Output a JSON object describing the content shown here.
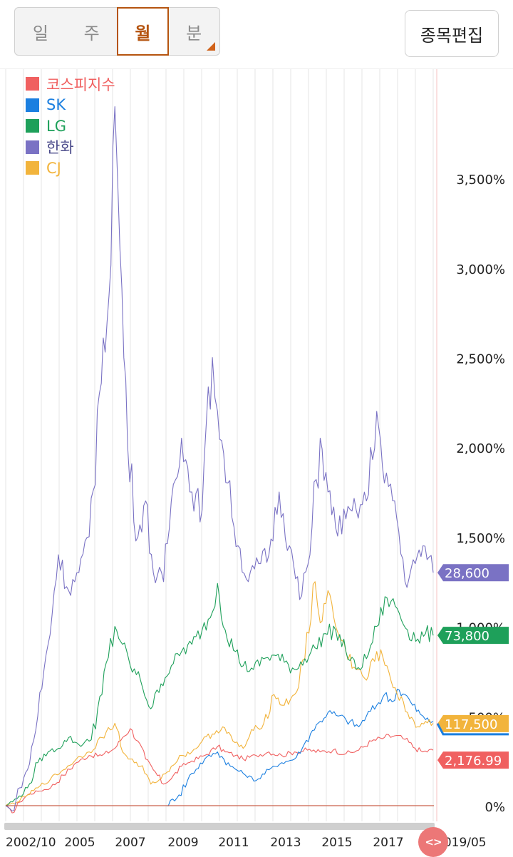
{
  "tabs": [
    {
      "label": "일"
    },
    {
      "label": "주"
    },
    {
      "label": "월"
    },
    {
      "label": "분"
    }
  ],
  "active_tab": "월",
  "edit_button": "종목편집",
  "scroll_knob": "<>",
  "chart_data": {
    "type": "line",
    "y_unit": "%",
    "yticks": [
      "0%",
      "500%",
      "1,000%",
      "1,500%",
      "2,000%",
      "2,500%",
      "3,000%",
      "3,500%"
    ],
    "ylim": [
      0,
      3950
    ],
    "xticks": [
      "2002/10",
      "2005",
      "2007",
      "2009",
      "2011",
      "2013",
      "2015",
      "2017",
      "2019/05"
    ],
    "x_range": [
      2002.75,
      2019.4
    ],
    "grid": true,
    "legend_position": "top-left",
    "series": [
      {
        "name": "코스피지수",
        "color": "#f06060",
        "last_value_label": "2,176.99",
        "points": [
          [
            2002.75,
            0
          ],
          [
            2003.0,
            -40
          ],
          [
            2003.3,
            20
          ],
          [
            2003.6,
            60
          ],
          [
            2004.0,
            80
          ],
          [
            2004.5,
            100
          ],
          [
            2005.0,
            170
          ],
          [
            2005.5,
            240
          ],
          [
            2006.0,
            280
          ],
          [
            2006.5,
            280
          ],
          [
            2007.0,
            320
          ],
          [
            2007.3,
            380
          ],
          [
            2007.6,
            430
          ],
          [
            2007.9,
            360
          ],
          [
            2008.2,
            260
          ],
          [
            2008.5,
            200
          ],
          [
            2008.9,
            120
          ],
          [
            2009.2,
            150
          ],
          [
            2009.6,
            220
          ],
          [
            2010.0,
            250
          ],
          [
            2010.5,
            280
          ],
          [
            2011.0,
            330
          ],
          [
            2011.3,
            300
          ],
          [
            2011.7,
            280
          ],
          [
            2012.0,
            260
          ],
          [
            2012.5,
            280
          ],
          [
            2013.0,
            300
          ],
          [
            2013.5,
            280
          ],
          [
            2014.0,
            300
          ],
          [
            2014.5,
            310
          ],
          [
            2015.0,
            300
          ],
          [
            2015.5,
            310
          ],
          [
            2016.0,
            290
          ],
          [
            2016.5,
            310
          ],
          [
            2017.0,
            360
          ],
          [
            2017.5,
            380
          ],
          [
            2017.9,
            390
          ],
          [
            2018.3,
            370
          ],
          [
            2018.7,
            320
          ],
          [
            2019.0,
            300
          ],
          [
            2019.4,
            310
          ]
        ]
      },
      {
        "name": "SK",
        "color": "#1b7fe0",
        "last_value_label": "",
        "points": [
          [
            2002.75,
            0
          ],
          [
            2009.0,
            0
          ],
          [
            2009.5,
            60
          ],
          [
            2010.0,
            180
          ],
          [
            2010.5,
            260
          ],
          [
            2011.0,
            300
          ],
          [
            2011.5,
            220
          ],
          [
            2012.0,
            180
          ],
          [
            2012.5,
            140
          ],
          [
            2013.0,
            200
          ],
          [
            2013.5,
            240
          ],
          [
            2014.0,
            260
          ],
          [
            2014.3,
            320
          ],
          [
            2014.7,
            420
          ],
          [
            2015.0,
            470
          ],
          [
            2015.3,
            520
          ],
          [
            2015.7,
            500
          ],
          [
            2016.0,
            480
          ],
          [
            2016.5,
            440
          ],
          [
            2016.8,
            500
          ],
          [
            2017.2,
            560
          ],
          [
            2017.5,
            620
          ],
          [
            2017.8,
            580
          ],
          [
            2018.0,
            650
          ],
          [
            2018.3,
            620
          ],
          [
            2018.6,
            560
          ],
          [
            2018.9,
            510
          ],
          [
            2019.1,
            480
          ],
          [
            2019.4,
            470
          ]
        ]
      },
      {
        "name": "LG",
        "color": "#1ea05a",
        "last_value_label": "73,800",
        "points": [
          [
            2002.75,
            0
          ],
          [
            2003.2,
            40
          ],
          [
            2003.6,
            100
          ],
          [
            2004.0,
            240
          ],
          [
            2004.4,
            300
          ],
          [
            2004.8,
            320
          ],
          [
            2005.2,
            380
          ],
          [
            2005.6,
            340
          ],
          [
            2006.0,
            360
          ],
          [
            2006.5,
            620
          ],
          [
            2007.0,
            1000
          ],
          [
            2007.3,
            900
          ],
          [
            2007.6,
            780
          ],
          [
            2008.0,
            700
          ],
          [
            2008.4,
            540
          ],
          [
            2008.8,
            680
          ],
          [
            2009.2,
            780
          ],
          [
            2009.6,
            860
          ],
          [
            2010.0,
            900
          ],
          [
            2010.4,
            980
          ],
          [
            2010.8,
            1080
          ],
          [
            2011.0,
            1240
          ],
          [
            2011.3,
            980
          ],
          [
            2011.7,
            860
          ],
          [
            2012.0,
            780
          ],
          [
            2012.4,
            760
          ],
          [
            2012.8,
            820
          ],
          [
            2013.2,
            840
          ],
          [
            2013.6,
            800
          ],
          [
            2014.0,
            760
          ],
          [
            2014.4,
            820
          ],
          [
            2014.8,
            880
          ],
          [
            2015.2,
            960
          ],
          [
            2015.6,
            980
          ],
          [
            2016.0,
            860
          ],
          [
            2016.4,
            760
          ],
          [
            2016.8,
            820
          ],
          [
            2017.2,
            1000
          ],
          [
            2017.6,
            1160
          ],
          [
            2018.0,
            1100
          ],
          [
            2018.4,
            980
          ],
          [
            2018.8,
            930
          ],
          [
            2019.1,
            960
          ],
          [
            2019.4,
            950
          ]
        ]
      },
      {
        "name": "한화",
        "color": "#7a72c4",
        "last_value_label": "28,600",
        "points": [
          [
            2002.75,
            0
          ],
          [
            2003.0,
            -30
          ],
          [
            2003.3,
            100
          ],
          [
            2003.6,
            200
          ],
          [
            2004.0,
            500
          ],
          [
            2004.4,
            900
          ],
          [
            2004.8,
            1400
          ],
          [
            2005.2,
            1200
          ],
          [
            2005.6,
            1300
          ],
          [
            2006.0,
            1500
          ],
          [
            2006.4,
            2300
          ],
          [
            2006.7,
            2700
          ],
          [
            2007.0,
            3900
          ],
          [
            2007.2,
            3100
          ],
          [
            2007.5,
            2000
          ],
          [
            2007.9,
            1500
          ],
          [
            2008.2,
            1700
          ],
          [
            2008.5,
            1300
          ],
          [
            2008.9,
            1250
          ],
          [
            2009.2,
            1700
          ],
          [
            2009.6,
            2050
          ],
          [
            2010.0,
            1750
          ],
          [
            2010.4,
            1650
          ],
          [
            2010.8,
            2500
          ],
          [
            2011.0,
            2200
          ],
          [
            2011.4,
            1800
          ],
          [
            2011.8,
            1450
          ],
          [
            2012.2,
            1250
          ],
          [
            2012.6,
            1350
          ],
          [
            2013.0,
            1400
          ],
          [
            2013.4,
            1750
          ],
          [
            2013.8,
            1450
          ],
          [
            2014.2,
            1150
          ],
          [
            2014.6,
            1400
          ],
          [
            2015.0,
            2050
          ],
          [
            2015.3,
            1750
          ],
          [
            2015.6,
            1550
          ],
          [
            2016.0,
            1600
          ],
          [
            2016.4,
            1650
          ],
          [
            2016.8,
            1700
          ],
          [
            2017.2,
            2200
          ],
          [
            2017.5,
            1800
          ],
          [
            2017.9,
            1700
          ],
          [
            2018.3,
            1250
          ],
          [
            2018.7,
            1350
          ],
          [
            2019.0,
            1450
          ],
          [
            2019.4,
            1300
          ]
        ]
      },
      {
        "name": "CJ",
        "color": "#f2b43c",
        "last_value_label": "117,500",
        "points": [
          [
            2002.75,
            0
          ],
          [
            2003.2,
            20
          ],
          [
            2003.6,
            60
          ],
          [
            2004.0,
            100
          ],
          [
            2004.5,
            150
          ],
          [
            2005.0,
            200
          ],
          [
            2005.5,
            260
          ],
          [
            2006.0,
            300
          ],
          [
            2006.5,
            380
          ],
          [
            2007.0,
            460
          ],
          [
            2007.3,
            300
          ],
          [
            2007.6,
            260
          ],
          [
            2008.0,
            220
          ],
          [
            2008.4,
            120
          ],
          [
            2008.8,
            150
          ],
          [
            2009.2,
            220
          ],
          [
            2009.6,
            280
          ],
          [
            2010.0,
            300
          ],
          [
            2010.4,
            360
          ],
          [
            2010.8,
            400
          ],
          [
            2011.2,
            440
          ],
          [
            2011.6,
            360
          ],
          [
            2012.0,
            320
          ],
          [
            2012.4,
            420
          ],
          [
            2012.8,
            460
          ],
          [
            2013.2,
            620
          ],
          [
            2013.6,
            560
          ],
          [
            2014.0,
            620
          ],
          [
            2014.4,
            820
          ],
          [
            2014.8,
            1250
          ],
          [
            2015.0,
            1020
          ],
          [
            2015.3,
            1200
          ],
          [
            2015.6,
            1000
          ],
          [
            2016.0,
            860
          ],
          [
            2016.4,
            760
          ],
          [
            2016.8,
            700
          ],
          [
            2017.2,
            860
          ],
          [
            2017.6,
            780
          ],
          [
            2018.0,
            620
          ],
          [
            2018.4,
            520
          ],
          [
            2018.8,
            440
          ],
          [
            2019.1,
            470
          ],
          [
            2019.4,
            460
          ]
        ]
      }
    ]
  }
}
